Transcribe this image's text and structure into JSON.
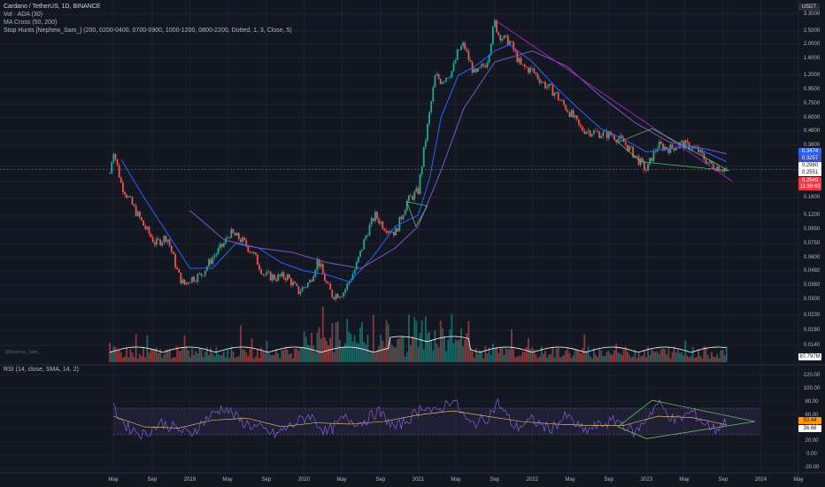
{
  "legend": {
    "title": "Cardano / TetherUS, 1D, BINANCE",
    "vol": "Vol · ADA (30)",
    "ma": "MA Cross (50, 200)",
    "stop_hunts": "Stop Hunts [Nephew_Sam_] (200, 0200-0400, 0700-0900, 1000-1200, 0800-2200, Dotted, 1, 3, Close, 5)"
  },
  "currency_button": "USDT",
  "watermark": "@Nephew_Sam_",
  "price_tags": [
    {
      "label": "0.3474",
      "color": "#2962ff",
      "text": "#ffffff"
    },
    {
      "label": "0.3257",
      "color": "#3f51b5",
      "text": "#ffffff"
    },
    {
      "label": "0.2980",
      "color": "#ffffff",
      "text": "#131722"
    },
    {
      "label": "0.2551",
      "color": "#ffffff",
      "text": "#131722"
    },
    {
      "label": "0.2549",
      "color": "#f23645",
      "text": "#ffffff"
    },
    {
      "label": "11:38:43",
      "color": "#f23645",
      "text": "#ffffff"
    }
  ],
  "volume_tag": {
    "label": "87.797M",
    "color": "#ffffff"
  },
  "rsi_tags": [
    {
      "label": "50.44",
      "color": "#ff9800"
    },
    {
      "label": "36.68",
      "color": "#ffffff"
    }
  ],
  "rsi_legend": "RSI (14, close, SMA, 14, 2)",
  "colors": {
    "up": "#26a69a",
    "down": "#ef5350",
    "ma50": "#2962ff",
    "ma200": "#7e57c2",
    "trendline": "#9c27b0",
    "pattern": "#66bb6a",
    "rsi": "#7e57c2",
    "rsi_ma": "#f5d76e"
  },
  "chart_data": [
    {
      "type": "line",
      "title": "Cardano / TetherUS, 1D, BINANCE",
      "scale": "log",
      "ylim": [
        0.0105,
        3.6
      ],
      "y_ticks": [
        "3.3000",
        "2.5000",
        "2.0000",
        "1.6000",
        "1.2000",
        "0.9500",
        "0.7500",
        "0.6000",
        "0.4800",
        "0.3800",
        "0.2700",
        "0.2100",
        "0.1600",
        "0.1200",
        "0.0950",
        "0.0750",
        "0.0600",
        "0.0480",
        "0.0380",
        "0.0300",
        "0.0230",
        "0.0180",
        "0.0140"
      ],
      "x_ticks": [
        "May",
        "Sep",
        "2019",
        "May",
        "Sep",
        "2020",
        "May",
        "Sep",
        "2021",
        "May",
        "Sep",
        "2022",
        "May",
        "Sep",
        "2023",
        "May",
        "Sep",
        "2024",
        "May"
      ],
      "x_tick_years": [
        2018.33,
        2018.67,
        2019.0,
        2019.33,
        2019.67,
        2020.0,
        2020.33,
        2020.67,
        2021.0,
        2021.33,
        2021.67,
        2022.0,
        2022.33,
        2022.67,
        2023.0,
        2023.33,
        2023.67,
        2024.0,
        2024.33
      ],
      "xlim": [
        2018.33,
        2024.33
      ],
      "series": [
        {
          "name": "ADA/USDT close (approx.)",
          "x": [
            2018.3,
            2018.33,
            2018.4,
            2018.5,
            2018.6,
            2018.7,
            2018.8,
            2018.9,
            2018.95,
            2019.0,
            2019.1,
            2019.2,
            2019.3,
            2019.35,
            2019.45,
            2019.55,
            2019.65,
            2019.75,
            2019.85,
            2019.95,
            2020.05,
            2020.12,
            2020.2,
            2020.25,
            2020.35,
            2020.45,
            2020.55,
            2020.62,
            2020.7,
            2020.8,
            2020.9,
            2021.0,
            2021.05,
            2021.1,
            2021.15,
            2021.2,
            2021.3,
            2021.35,
            2021.4,
            2021.45,
            2021.5,
            2021.55,
            2021.6,
            2021.67,
            2021.7,
            2021.75,
            2021.8,
            2021.9,
            2022.0,
            2022.1,
            2022.2,
            2022.25,
            2022.35,
            2022.42,
            2022.5,
            2022.6,
            2022.7,
            2022.8,
            2022.9,
            2023.0,
            2023.05,
            2023.1,
            2023.2,
            2023.3,
            2023.4,
            2023.45,
            2023.5,
            2023.55,
            2023.6,
            2023.67,
            2023.7
          ],
          "values": [
            0.24,
            0.36,
            0.2,
            0.14,
            0.1,
            0.075,
            0.085,
            0.045,
            0.038,
            0.042,
            0.045,
            0.06,
            0.075,
            0.09,
            0.08,
            0.065,
            0.045,
            0.043,
            0.044,
            0.034,
            0.04,
            0.058,
            0.038,
            0.032,
            0.034,
            0.05,
            0.09,
            0.12,
            0.1,
            0.09,
            0.15,
            0.18,
            0.35,
            0.65,
            1.2,
            1.1,
            1.3,
            1.8,
            2.0,
            1.5,
            1.2,
            1.35,
            1.5,
            2.9,
            2.4,
            2.2,
            2.1,
            1.4,
            1.3,
            1.05,
            0.9,
            0.78,
            0.62,
            0.5,
            0.48,
            0.46,
            0.45,
            0.4,
            0.32,
            0.25,
            0.32,
            0.38,
            0.36,
            0.39,
            0.37,
            0.35,
            0.31,
            0.28,
            0.27,
            0.26,
            0.255
          ]
        },
        {
          "name": "MA 50 (approx.)",
          "x": [
            2018.4,
            2018.6,
            2018.8,
            2019.0,
            2019.2,
            2019.4,
            2019.6,
            2019.8,
            2020.0,
            2020.2,
            2020.4,
            2020.6,
            2020.8,
            2021.0,
            2021.1,
            2021.2,
            2021.35,
            2021.5,
            2021.67,
            2021.8,
            2022.0,
            2022.2,
            2022.4,
            2022.6,
            2022.8,
            2023.0,
            2023.2,
            2023.4,
            2023.55,
            2023.7
          ],
          "values": [
            0.3,
            0.16,
            0.09,
            0.05,
            0.05,
            0.075,
            0.07,
            0.055,
            0.048,
            0.045,
            0.04,
            0.06,
            0.1,
            0.12,
            0.22,
            0.6,
            1.2,
            1.4,
            1.8,
            2.0,
            1.5,
            1.0,
            0.7,
            0.5,
            0.42,
            0.34,
            0.36,
            0.37,
            0.33,
            0.29
          ]
        },
        {
          "name": "MA 200 (approx.)",
          "x": [
            2019.0,
            2019.3,
            2019.6,
            2019.9,
            2020.2,
            2020.5,
            2020.8,
            2021.0,
            2021.2,
            2021.4,
            2021.67,
            2022.0,
            2022.3,
            2022.6,
            2022.9,
            2023.2,
            2023.5,
            2023.7
          ],
          "values": [
            0.13,
            0.08,
            0.07,
            0.065,
            0.055,
            0.05,
            0.07,
            0.1,
            0.25,
            0.7,
            1.5,
            1.8,
            1.4,
            0.85,
            0.55,
            0.4,
            0.36,
            0.33
          ]
        }
      ]
    },
    {
      "type": "bar",
      "title": "Vol · ADA (30)",
      "value_label": "87.797M"
    },
    {
      "type": "line",
      "title": "RSI (14, close, SMA, 14, 2)",
      "ylim": [
        -25,
        125
      ],
      "y_ticks": [
        "120.00",
        "100.00",
        "80.00",
        "60.00",
        "40.00",
        "20.00",
        "0.00",
        "-20.00"
      ],
      "bands": {
        "upper": 70,
        "lower": 30
      },
      "series": [
        {
          "name": "RSI (approx.)",
          "x": [
            2018.33,
            2018.45,
            2018.6,
            2018.75,
            2018.9,
            2019.0,
            2019.15,
            2019.3,
            2019.45,
            2019.6,
            2019.75,
            2019.9,
            2020.05,
            2020.2,
            2020.35,
            2020.5,
            2020.65,
            2020.8,
            2020.95,
            2021.05,
            2021.15,
            2021.3,
            2021.45,
            2021.6,
            2021.7,
            2021.85,
            2022.0,
            2022.15,
            2022.3,
            2022.45,
            2022.6,
            2022.75,
            2022.9,
            2023.0,
            2023.1,
            2023.25,
            2023.4,
            2023.5,
            2023.6,
            2023.7
          ],
          "values": [
            70,
            42,
            30,
            48,
            38,
            30,
            55,
            72,
            50,
            40,
            30,
            45,
            60,
            32,
            55,
            48,
            65,
            40,
            58,
            75,
            62,
            85,
            45,
            55,
            78,
            40,
            52,
            38,
            58,
            35,
            45,
            52,
            32,
            55,
            78,
            50,
            65,
            48,
            38,
            50
          ]
        },
        {
          "name": "RSI SMA (approx.)",
          "x": [
            2018.33,
            2018.6,
            2018.9,
            2019.2,
            2019.5,
            2019.8,
            2020.1,
            2020.4,
            2020.7,
            2021.0,
            2021.3,
            2021.6,
            2021.9,
            2022.2,
            2022.5,
            2022.8,
            2023.1,
            2023.4,
            2023.7
          ],
          "values": [
            58,
            42,
            40,
            52,
            55,
            42,
            48,
            46,
            50,
            60,
            66,
            58,
            50,
            46,
            44,
            44,
            58,
            56,
            45
          ]
        }
      ]
    }
  ]
}
